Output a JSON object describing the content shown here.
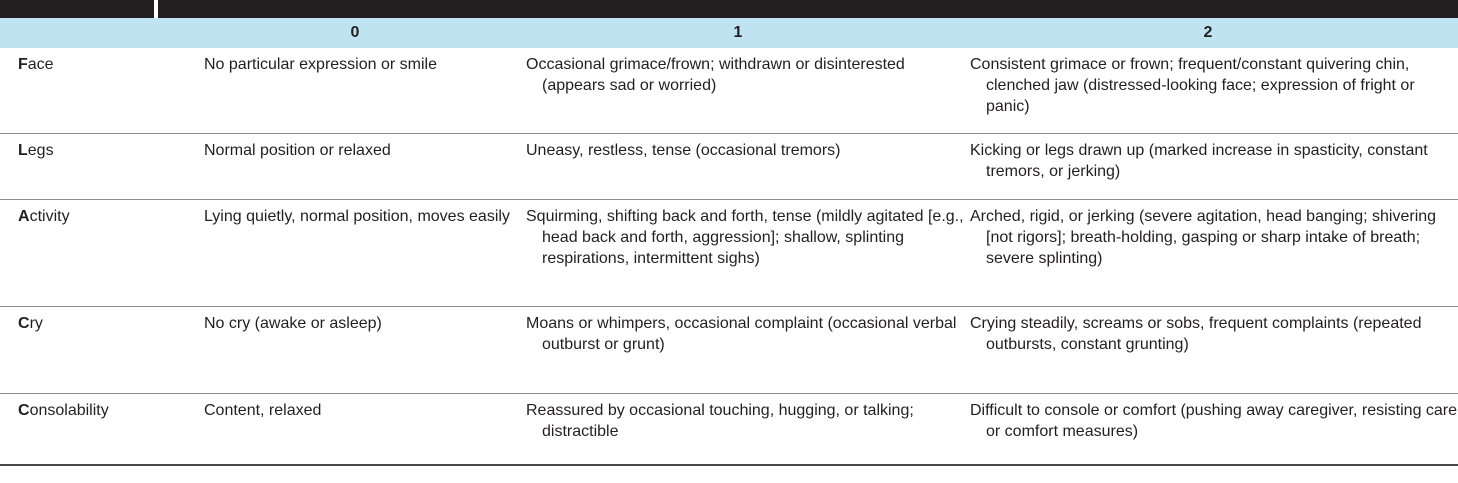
{
  "header": {
    "col0": "0",
    "col1": "1",
    "col2": "2"
  },
  "rows": [
    {
      "initial": "F",
      "rest": "ace",
      "score0": "No particular expression or smile",
      "score1": "Occasional grimace/frown; withdrawn or disinterested (appears sad or worried)",
      "score2": "Consistent grimace or frown; frequent/constant quivering chin, clenched jaw (distressed-looking face; expression of fright or panic)"
    },
    {
      "initial": "L",
      "rest": "egs",
      "score0": "Normal position or relaxed",
      "score1": "Uneasy, restless, tense (occasional tremors)",
      "score2": "Kicking or legs drawn up (marked increase in spasticity, constant tremors, or jerking)"
    },
    {
      "initial": "A",
      "rest": "ctivity",
      "score0": "Lying quietly, normal position, moves easily",
      "score1": "Squirming, shifting back and forth, tense (mildly agitated [e.g., head back and forth, aggression]; shallow, splinting respirations, intermittent sighs)",
      "score2": "Arched, rigid, or jerking (severe agitation, head banging; shivering [not rigors]; breath-holding, gasping or sharp intake of breath; severe splinting)"
    },
    {
      "initial": "C",
      "rest": "ry",
      "score0": "No cry (awake or asleep)",
      "score1": "Moans or whimpers, occasional complaint (occasional verbal outburst or grunt)",
      "score2": "Crying steadily, screams or sobs, frequent complaints (repeated outbursts, constant grunting)"
    },
    {
      "initial": "C",
      "rest": "onsolability",
      "score0": "Content, relaxed",
      "score1": "Reassured by occasional touching, hugging, or talking; distractible",
      "score2": "Difficult to console or comfort (pushing away caregiver, resisting care or comfort measures)"
    }
  ]
}
